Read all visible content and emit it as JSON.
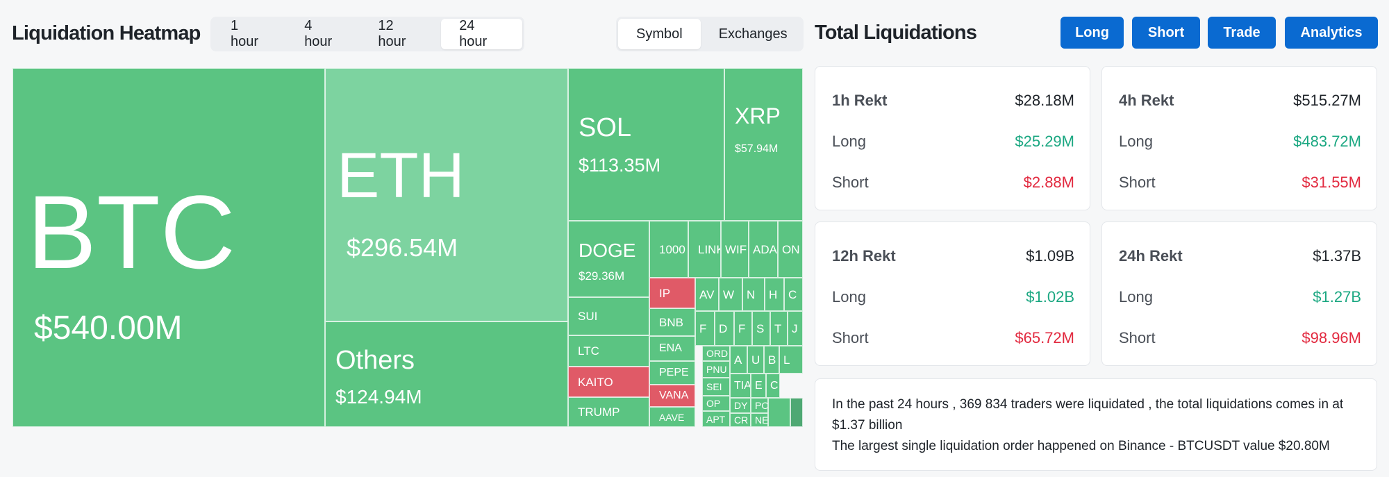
{
  "heatmap": {
    "title": "Liquidation Heatmap",
    "time_tabs": [
      "1 hour",
      "4 hour",
      "12 hour",
      "24 hour"
    ],
    "active_time_tab": "24 hour",
    "view_tabs": [
      "Symbol",
      "Exchanges"
    ],
    "active_view_tab": "Symbol",
    "colors": {
      "long": "#5bc482",
      "short": "#e05a67",
      "eth": "#7dd3a0"
    },
    "tiles": [
      {
        "symbol": "BTC",
        "value": "$540.00M",
        "color": "#5bc482"
      },
      {
        "symbol": "ETH",
        "value": "$296.54M",
        "color": "#7dd3a0"
      },
      {
        "symbol": "Others",
        "value": "$124.94M",
        "color": "#5bc482"
      },
      {
        "symbol": "SOL",
        "value": "$113.35M",
        "color": "#5bc482"
      },
      {
        "symbol": "XRP",
        "value": "$57.94M",
        "color": "#5bc482"
      },
      {
        "symbol": "DOGE",
        "value": "$29.36M",
        "color": "#5bc482"
      },
      {
        "symbol": "SUI",
        "color": "#5bc482"
      },
      {
        "symbol": "LTC",
        "color": "#5bc482"
      },
      {
        "symbol": "KAITO",
        "color": "#e05a67"
      },
      {
        "symbol": "TRUMP",
        "color": "#5bc482"
      },
      {
        "symbol": "1000",
        "color": "#5bc482"
      },
      {
        "symbol": "LINK",
        "color": "#5bc482"
      },
      {
        "symbol": "WIF",
        "color": "#5bc482"
      },
      {
        "symbol": "ADA",
        "color": "#5bc482"
      },
      {
        "symbol": "ON",
        "color": "#5bc482"
      },
      {
        "symbol": "IP",
        "color": "#e05a67"
      },
      {
        "symbol": "BNB",
        "color": "#5bc482"
      },
      {
        "symbol": "ENA",
        "color": "#5bc482"
      },
      {
        "symbol": "PEPE",
        "color": "#5bc482"
      },
      {
        "symbol": "VANA",
        "color": "#e05a67"
      },
      {
        "symbol": "AAVE",
        "color": "#5bc482"
      },
      {
        "symbol": "AV",
        "color": "#5bc482"
      },
      {
        "symbol": "W",
        "color": "#5bc482"
      },
      {
        "symbol": "N",
        "color": "#5bc482"
      },
      {
        "symbol": "H",
        "color": "#5bc482"
      },
      {
        "symbol": "C",
        "color": "#5bc482"
      },
      {
        "symbol": "F",
        "color": "#5bc482"
      },
      {
        "symbol": "D",
        "color": "#5bc482"
      },
      {
        "symbol": "F",
        "color": "#5bc482"
      },
      {
        "symbol": "S",
        "color": "#5bc482"
      },
      {
        "symbol": "T",
        "color": "#5bc482"
      },
      {
        "symbol": "J",
        "color": "#5bc482"
      },
      {
        "symbol": "ORD",
        "color": "#5bc482"
      },
      {
        "symbol": "PNU",
        "color": "#5bc482"
      },
      {
        "symbol": "SEI",
        "color": "#5bc482"
      },
      {
        "symbol": "OP",
        "color": "#5bc482"
      },
      {
        "symbol": "APT",
        "color": "#5bc482"
      },
      {
        "symbol": "A",
        "color": "#5bc482"
      },
      {
        "symbol": "U",
        "color": "#5bc482"
      },
      {
        "symbol": "B",
        "color": "#5bc482"
      },
      {
        "symbol": "L",
        "color": "#5bc482"
      },
      {
        "symbol": "TIA",
        "color": "#5bc482"
      },
      {
        "symbol": "E",
        "color": "#5bc482"
      },
      {
        "symbol": "C",
        "color": "#5bc482"
      },
      {
        "symbol": "DY",
        "color": "#5bc482"
      },
      {
        "symbol": "PO",
        "color": "#5bc482"
      },
      {
        "symbol": "CR",
        "color": "#5bc482"
      },
      {
        "symbol": "NE",
        "color": "#5bc482"
      },
      {
        "symbol": "",
        "color": "#5bc482"
      },
      {
        "symbol": "",
        "color": "#4ea873"
      }
    ]
  },
  "totals": {
    "title": "Total Liquidations",
    "buttons": [
      "Long",
      "Short",
      "Trade",
      "Analytics"
    ],
    "colors": {
      "accent": "#0a6ad1",
      "green": "#1aa781",
      "red": "#e2293f"
    },
    "cards": [
      {
        "label": "1h Rekt",
        "total": "$28.18M",
        "long_label": "Long",
        "long": "$25.29M",
        "short_label": "Short",
        "short": "$2.88M"
      },
      {
        "label": "4h Rekt",
        "total": "$515.27M",
        "long_label": "Long",
        "long": "$483.72M",
        "short_label": "Short",
        "short": "$31.55M"
      },
      {
        "label": "12h Rekt",
        "total": "$1.09B",
        "long_label": "Long",
        "long": "$1.02B",
        "short_label": "Short",
        "short": "$65.72M"
      },
      {
        "label": "24h Rekt",
        "total": "$1.37B",
        "long_label": "Long",
        "long": "$1.27B",
        "short_label": "Short",
        "short": "$98.96M"
      }
    ],
    "summary": {
      "line1": "In the past 24 hours , 369 834 traders were liquidated , the total liquidations comes in at $1.37 billion",
      "line2": "The largest single liquidation order happened on Binance - BTCUSDT value $20.80M"
    }
  }
}
